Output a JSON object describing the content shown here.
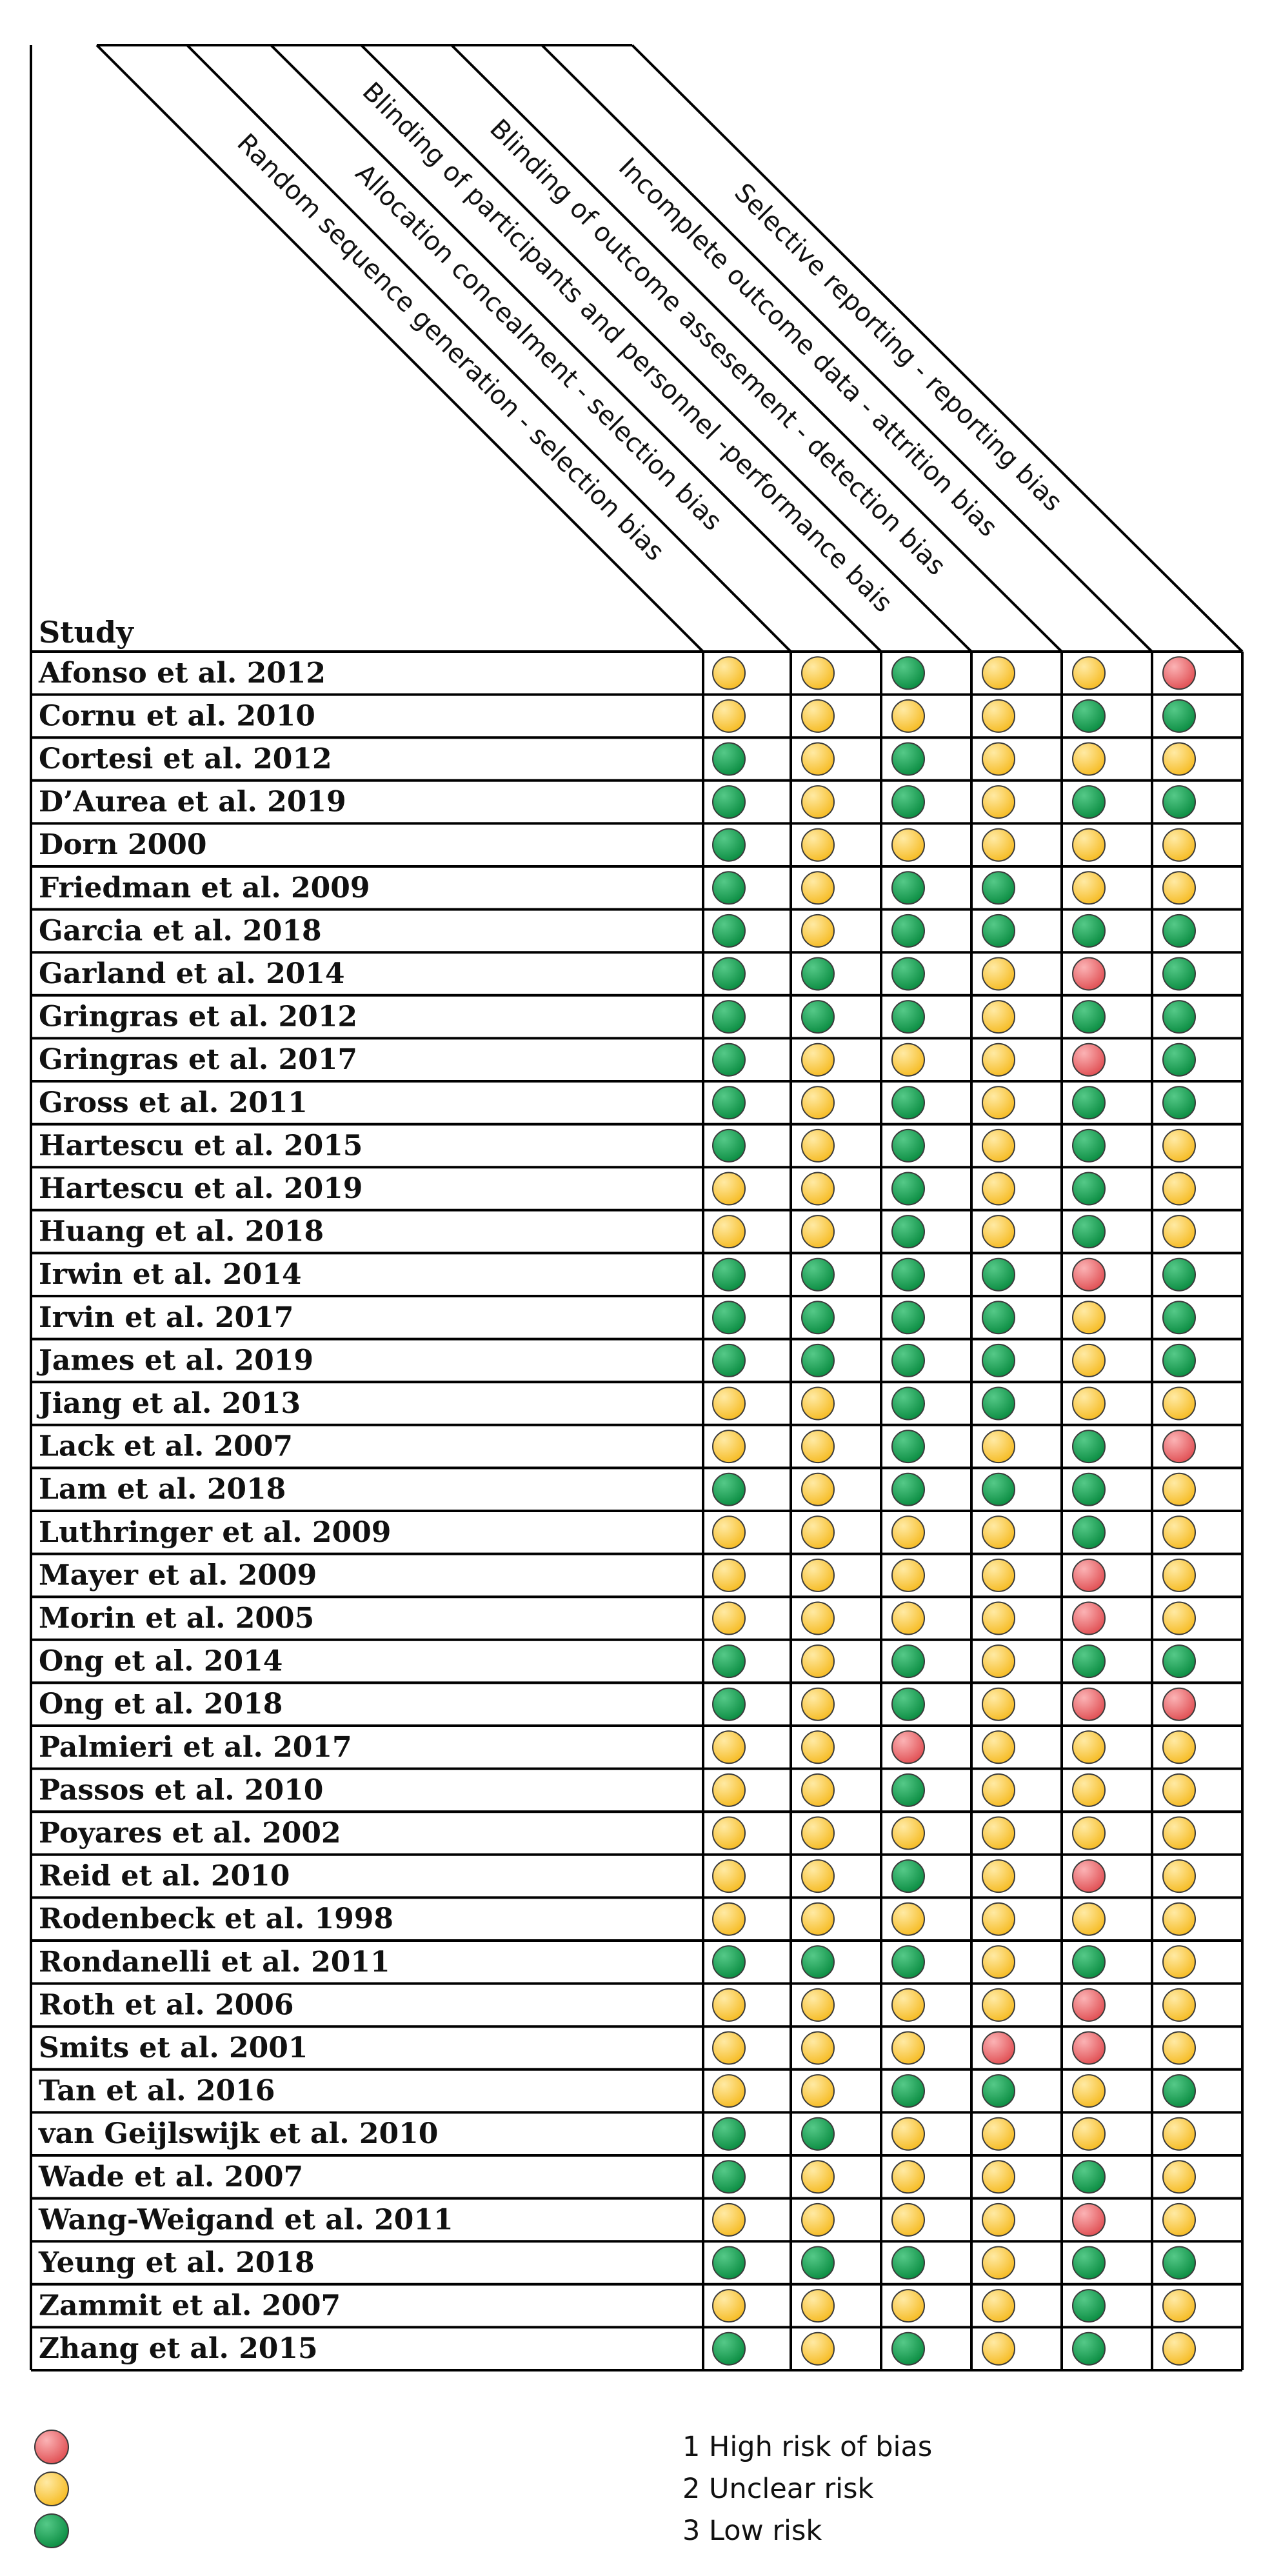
{
  "chart_data": {
    "type": "table",
    "study_header": "Study",
    "columns": [
      "Random sequence generation - selection bias",
      "Allocation concealment - selection bias",
      "Blinding of participants and personnel -performance bais",
      "Blinding of outcome assesement - detection bias",
      "Incomplete outcome data - attrition bias",
      "Selective reporting - reporting bias"
    ],
    "rows": [
      {
        "study": "Afonso et al. 2012",
        "ratings": [
          2,
          2,
          3,
          2,
          2,
          1
        ]
      },
      {
        "study": "Cornu et al. 2010",
        "ratings": [
          2,
          2,
          2,
          2,
          3,
          3
        ]
      },
      {
        "study": "Cortesi et al. 2012",
        "ratings": [
          3,
          2,
          3,
          2,
          2,
          2
        ]
      },
      {
        "study": "D’Aurea et al. 2019",
        "ratings": [
          3,
          2,
          3,
          2,
          3,
          3
        ]
      },
      {
        "study": "Dorn 2000",
        "ratings": [
          3,
          2,
          2,
          2,
          2,
          2
        ]
      },
      {
        "study": "Friedman et al. 2009",
        "ratings": [
          3,
          2,
          3,
          3,
          2,
          2
        ]
      },
      {
        "study": "Garcia et al. 2018",
        "ratings": [
          3,
          2,
          3,
          3,
          3,
          3
        ]
      },
      {
        "study": "Garland et al. 2014",
        "ratings": [
          3,
          3,
          3,
          2,
          1,
          3
        ]
      },
      {
        "study": "Gringras et al. 2012",
        "ratings": [
          3,
          3,
          3,
          2,
          3,
          3
        ]
      },
      {
        "study": "Gringras et al. 2017",
        "ratings": [
          3,
          2,
          2,
          2,
          1,
          3
        ]
      },
      {
        "study": "Gross et al. 2011",
        "ratings": [
          3,
          2,
          3,
          2,
          3,
          3
        ]
      },
      {
        "study": "Hartescu et al. 2015",
        "ratings": [
          3,
          2,
          3,
          2,
          3,
          2
        ]
      },
      {
        "study": "Hartescu et al. 2019",
        "ratings": [
          2,
          2,
          3,
          2,
          3,
          2
        ]
      },
      {
        "study": "Huang et al. 2018",
        "ratings": [
          2,
          2,
          3,
          2,
          3,
          2
        ]
      },
      {
        "study": "Irwin et al. 2014",
        "ratings": [
          3,
          3,
          3,
          3,
          1,
          3
        ]
      },
      {
        "study": "Irvin et al. 2017",
        "ratings": [
          3,
          3,
          3,
          3,
          2,
          3
        ]
      },
      {
        "study": "James et al. 2019",
        "ratings": [
          3,
          3,
          3,
          3,
          2,
          3
        ]
      },
      {
        "study": "Jiang et al. 2013",
        "ratings": [
          2,
          2,
          3,
          3,
          2,
          2
        ]
      },
      {
        "study": "Lack et al. 2007",
        "ratings": [
          2,
          2,
          3,
          2,
          3,
          1
        ]
      },
      {
        "study": "Lam et al. 2018",
        "ratings": [
          3,
          2,
          3,
          3,
          3,
          2
        ]
      },
      {
        "study": "Luthringer et al. 2009",
        "ratings": [
          2,
          2,
          2,
          2,
          3,
          2
        ]
      },
      {
        "study": "Mayer et al. 2009",
        "ratings": [
          2,
          2,
          2,
          2,
          1,
          2
        ]
      },
      {
        "study": "Morin et al. 2005",
        "ratings": [
          2,
          2,
          2,
          2,
          1,
          2
        ]
      },
      {
        "study": "Ong et al. 2014",
        "ratings": [
          3,
          2,
          3,
          2,
          3,
          3
        ]
      },
      {
        "study": "Ong et al. 2018",
        "ratings": [
          3,
          2,
          3,
          2,
          1,
          1
        ]
      },
      {
        "study": "Palmieri et al. 2017",
        "ratings": [
          2,
          2,
          1,
          2,
          2,
          2
        ]
      },
      {
        "study": "Passos et al. 2010",
        "ratings": [
          2,
          2,
          3,
          2,
          2,
          2
        ]
      },
      {
        "study": "Poyares et al. 2002",
        "ratings": [
          2,
          2,
          2,
          2,
          2,
          2
        ]
      },
      {
        "study": "Reid et al. 2010",
        "ratings": [
          2,
          2,
          3,
          2,
          1,
          2
        ]
      },
      {
        "study": "Rodenbeck et al. 1998",
        "ratings": [
          2,
          2,
          2,
          2,
          2,
          2
        ]
      },
      {
        "study": "Rondanelli et al. 2011",
        "ratings": [
          3,
          3,
          3,
          2,
          3,
          2
        ]
      },
      {
        "study": "Roth et al. 2006",
        "ratings": [
          2,
          2,
          2,
          2,
          1,
          2
        ]
      },
      {
        "study": "Smits et al. 2001",
        "ratings": [
          2,
          2,
          2,
          1,
          1,
          2
        ]
      },
      {
        "study": "Tan et al. 2016",
        "ratings": [
          2,
          2,
          3,
          3,
          2,
          3
        ]
      },
      {
        "study": "van Geijlswijk et al. 2010",
        "ratings": [
          3,
          3,
          2,
          2,
          2,
          2
        ]
      },
      {
        "study": "Wade et al. 2007",
        "ratings": [
          3,
          2,
          2,
          2,
          3,
          2
        ]
      },
      {
        "study": "Wang-Weigand et al. 2011",
        "ratings": [
          2,
          2,
          2,
          2,
          1,
          2
        ]
      },
      {
        "study": "Yeung et al. 2018",
        "ratings": [
          3,
          3,
          3,
          2,
          3,
          3
        ]
      },
      {
        "study": "Zammit et al. 2007",
        "ratings": [
          2,
          2,
          2,
          2,
          3,
          2
        ]
      },
      {
        "study": "Zhang et al. 2015",
        "ratings": [
          3,
          2,
          3,
          2,
          3,
          2
        ]
      }
    ],
    "legend": [
      {
        "value": 1,
        "number_label": "1",
        "text": "High risk of bias",
        "color": "#e9676a"
      },
      {
        "value": 2,
        "number_label": "2",
        "text": "Unclear risk",
        "color": "#fbc840"
      },
      {
        "value": 3,
        "number_label": "3",
        "text": "Low risk",
        "color": "#11a150"
      }
    ]
  }
}
